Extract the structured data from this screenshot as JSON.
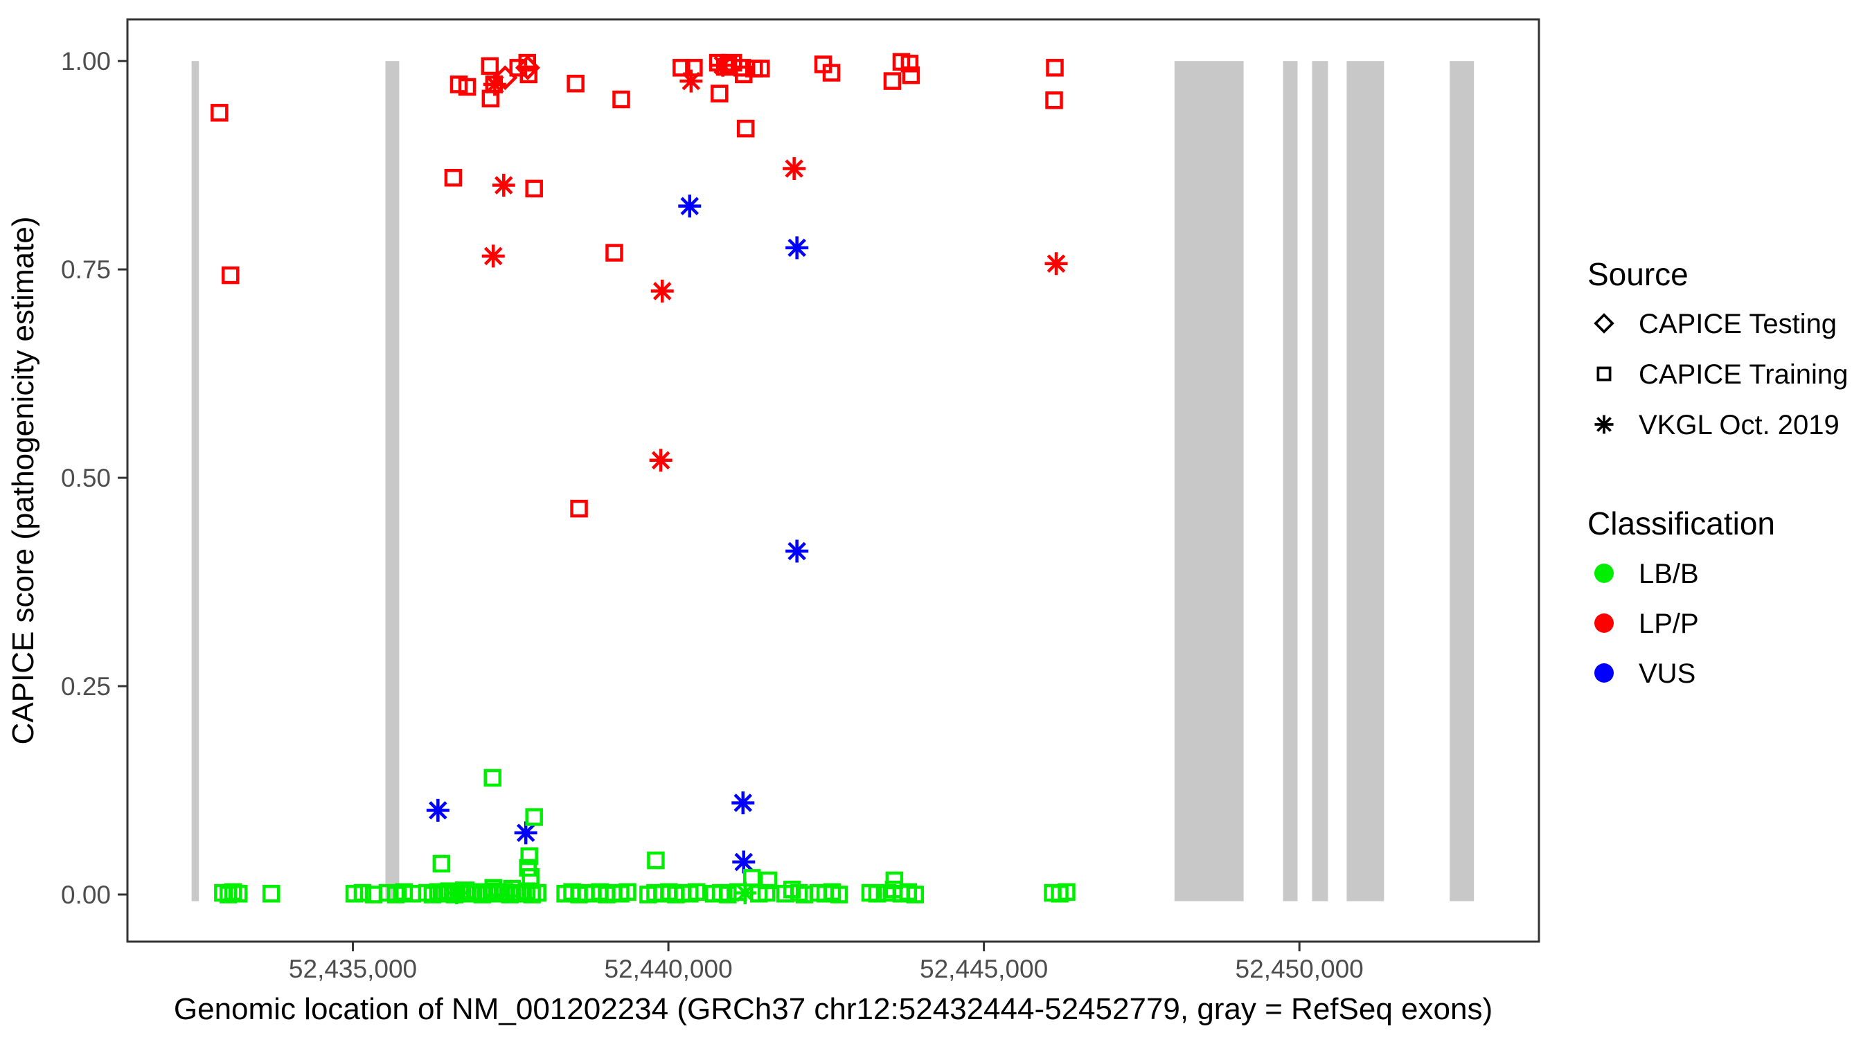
{
  "chart_data": {
    "type": "scatter",
    "title": "",
    "xlabel": "Genomic location of NM_001202234 (GRCh37 chr12:52432444-52452779, gray = RefSeq exons)",
    "ylabel": "CAPICE score (pathogenicity estimate)",
    "x_domain": [
      52431427,
      52453796
    ],
    "y_domain": [
      -0.0565,
      1.05
    ],
    "grid": "off",
    "x_ticks": [
      {
        "v": 52435000,
        "label": "52,435,000"
      },
      {
        "v": 52440000,
        "label": "52,440,000"
      },
      {
        "v": 52445000,
        "label": "52,445,000"
      },
      {
        "v": 52450000,
        "label": "52,450,000"
      }
    ],
    "y_ticks": [
      {
        "v": 0.0,
        "label": "0.00"
      },
      {
        "v": 0.25,
        "label": "0.25"
      },
      {
        "v": 0.5,
        "label": "0.50"
      },
      {
        "v": 0.75,
        "label": "0.75"
      },
      {
        "v": 1.0,
        "label": "1.00"
      }
    ],
    "colors": {
      "LB": "#00EE00",
      "LP": "#FF0000",
      "VUS": "#0000FF",
      "exon": "#C8C8C8",
      "tick_text": "#4D4D4D",
      "axis": "#333333"
    },
    "exons_note": "gray = RefSeq exons",
    "exons": [
      [
        52432444,
        52432560
      ],
      [
        52435515,
        52435734
      ],
      [
        52448020,
        52449116
      ],
      [
        52449741,
        52449971
      ],
      [
        52450201,
        52450453
      ],
      [
        52450749,
        52451341
      ],
      [
        52452382,
        52452766
      ]
    ],
    "legend": {
      "source": {
        "title": "Source",
        "items": [
          {
            "label": "CAPICE Testing",
            "marker": "di"
          },
          {
            "label": "CAPICE Training",
            "marker": "sq"
          },
          {
            "label": "VKGL Oct. 2019",
            "marker": "as"
          }
        ]
      },
      "classification": {
        "title": "Classification",
        "items": [
          {
            "label": "LB/B",
            "color": "#00EE00"
          },
          {
            "label": "LP/P",
            "color": "#FF0000"
          },
          {
            "label": "VUS",
            "color": "#0000FF"
          }
        ]
      }
    },
    "points": [
      [
        52432885,
        0.938,
        "sq",
        "LP"
      ],
      [
        52433060,
        0.743,
        "sq",
        "LP"
      ],
      [
        52436590,
        0.86,
        "sq",
        "LP"
      ],
      [
        52436679,
        0.972,
        "sq",
        "LP"
      ],
      [
        52436811,
        0.969,
        "sq",
        "LP"
      ],
      [
        52437171,
        0.994,
        "sq",
        "LP"
      ],
      [
        52437237,
        0.972,
        "sq",
        "LP"
      ],
      [
        52437182,
        0.955,
        "sq",
        "LP"
      ],
      [
        52437620,
        0.992,
        "sq",
        "LP"
      ],
      [
        52437763,
        0.998,
        "sq",
        "LP"
      ],
      [
        52437785,
        0.984,
        "sq",
        "LP"
      ],
      [
        52437872,
        0.847,
        "sq",
        "LP"
      ],
      [
        52438530,
        0.973,
        "sq",
        "LP"
      ],
      [
        52439253,
        0.954,
        "sq",
        "LP"
      ],
      [
        52438584,
        0.463,
        "sq",
        "LP"
      ],
      [
        52439143,
        0.77,
        "sq",
        "LP"
      ],
      [
        52440206,
        0.992,
        "sq",
        "LP"
      ],
      [
        52440404,
        0.992,
        "sq",
        "LP"
      ],
      [
        52440785,
        0.998,
        "sq",
        "LP"
      ],
      [
        52440896,
        0.993,
        "sq",
        "LP"
      ],
      [
        52440950,
        0.996,
        "sq",
        "LP"
      ],
      [
        52441028,
        0.998,
        "sq",
        "LP"
      ],
      [
        52440809,
        0.961,
        "sq",
        "LP"
      ],
      [
        52441171,
        0.992,
        "sq",
        "LP"
      ],
      [
        52441193,
        0.984,
        "sq",
        "LP"
      ],
      [
        52441357,
        0.991,
        "sq",
        "LP"
      ],
      [
        52441467,
        0.991,
        "sq",
        "LP"
      ],
      [
        52441225,
        0.919,
        "sq",
        "LP"
      ],
      [
        52442453,
        0.996,
        "sq",
        "LP"
      ],
      [
        52442584,
        0.986,
        "sq",
        "LP"
      ],
      [
        52443549,
        0.976,
        "sq",
        "LP"
      ],
      [
        52443692,
        0.999,
        "sq",
        "LP"
      ],
      [
        52443823,
        0.997,
        "sq",
        "LP"
      ],
      [
        52443845,
        0.983,
        "sq",
        "LP"
      ],
      [
        52446124,
        0.992,
        "sq",
        "LP"
      ],
      [
        52446113,
        0.953,
        "sq",
        "LP"
      ],
      [
        52437412,
        0.98,
        "di",
        "LP"
      ],
      [
        52437770,
        0.992,
        "di",
        "LP"
      ],
      [
        52437248,
        0.972,
        "as",
        "LP"
      ],
      [
        52440360,
        0.976,
        "as",
        "LP"
      ],
      [
        52440863,
        0.995,
        "as",
        "LP"
      ],
      [
        52437390,
        0.851,
        "as",
        "LP"
      ],
      [
        52437225,
        0.766,
        "as",
        "LP"
      ],
      [
        52439903,
        0.724,
        "as",
        "LP"
      ],
      [
        52439880,
        0.521,
        "as",
        "LP"
      ],
      [
        52441993,
        0.871,
        "as",
        "LP"
      ],
      [
        52446146,
        0.757,
        "as",
        "LP"
      ],
      [
        52440337,
        0.826,
        "as",
        "VUS"
      ],
      [
        52442037,
        0.776,
        "as",
        "VUS"
      ],
      [
        52442037,
        0.412,
        "as",
        "VUS"
      ],
      [
        52436348,
        0.101,
        "as",
        "VUS"
      ],
      [
        52437740,
        0.074,
        "as",
        "VUS"
      ],
      [
        52441182,
        0.11,
        "as",
        "VUS"
      ],
      [
        52441193,
        0.039,
        "as",
        "VUS"
      ],
      [
        52437214,
        0.14,
        "sq",
        "LB"
      ],
      [
        52437872,
        0.093,
        "sq",
        "LB"
      ],
      [
        52436403,
        0.037,
        "sq",
        "LB"
      ],
      [
        52437795,
        0.046,
        "sq",
        "LB"
      ],
      [
        52437773,
        0.032,
        "sq",
        "LB"
      ],
      [
        52437817,
        0.021,
        "sq",
        "LB"
      ],
      [
        52439801,
        0.041,
        "sq",
        "LB"
      ],
      [
        52441324,
        0.02,
        "sq",
        "LB"
      ],
      [
        52441587,
        0.017,
        "sq",
        "LB"
      ],
      [
        52443581,
        0.017,
        "sq",
        "LB"
      ],
      [
        52437225,
        0.008,
        "sq",
        "LB"
      ],
      [
        52437521,
        0.007,
        "sq",
        "LB"
      ],
      [
        52441215,
        0.002,
        "as",
        "LB"
      ],
      [
        52436644,
        0.002,
        "as",
        "LB"
      ],
      [
        52432940,
        0.002,
        "sq",
        "LB"
      ],
      [
        52433027,
        0.0,
        "sq",
        "LB"
      ],
      [
        52433104,
        0.003,
        "sq",
        "LB"
      ],
      [
        52433191,
        0.001,
        "sq",
        "LB"
      ],
      [
        52433707,
        0.001,
        "sq",
        "LB"
      ],
      [
        52435022,
        0.001,
        "sq",
        "LB"
      ],
      [
        52435153,
        0.002,
        "sq",
        "LB"
      ],
      [
        52435329,
        0.0,
        "sq",
        "LB"
      ],
      [
        52435548,
        0.002,
        "sq",
        "LB"
      ],
      [
        52435680,
        0.0,
        "sq",
        "LB"
      ],
      [
        52435811,
        0.003,
        "sq",
        "LB"
      ],
      [
        52435942,
        0.001,
        "sq",
        "LB"
      ],
      [
        52436173,
        0.002,
        "sq",
        "LB"
      ],
      [
        52436261,
        0.0,
        "sq",
        "LB"
      ],
      [
        52436348,
        0.003,
        "sq",
        "LB"
      ],
      [
        52436436,
        0.001,
        "sq",
        "LB"
      ],
      [
        52436524,
        0.004,
        "sq",
        "LB"
      ],
      [
        52436611,
        0.0,
        "sq",
        "LB"
      ],
      [
        52436699,
        0.002,
        "sq",
        "LB"
      ],
      [
        52436787,
        0.005,
        "sq",
        "LB"
      ],
      [
        52436874,
        0.001,
        "sq",
        "LB"
      ],
      [
        52436962,
        0.003,
        "sq",
        "LB"
      ],
      [
        52437050,
        0.0,
        "sq",
        "LB"
      ],
      [
        52437137,
        0.002,
        "sq",
        "LB"
      ],
      [
        52437225,
        0.004,
        "sq",
        "LB"
      ],
      [
        52437313,
        0.001,
        "sq",
        "LB"
      ],
      [
        52437400,
        0.003,
        "sq",
        "LB"
      ],
      [
        52437488,
        0.0,
        "sq",
        "LB"
      ],
      [
        52437576,
        0.002,
        "sq",
        "LB"
      ],
      [
        52437663,
        0.001,
        "sq",
        "LB"
      ],
      [
        52437751,
        0.004,
        "sq",
        "LB"
      ],
      [
        52437839,
        0.0,
        "sq",
        "LB"
      ],
      [
        52437926,
        0.002,
        "sq",
        "LB"
      ],
      [
        52438365,
        0.001,
        "sq",
        "LB"
      ],
      [
        52438474,
        0.003,
        "sq",
        "LB"
      ],
      [
        52438584,
        0.0,
        "sq",
        "LB"
      ],
      [
        52438694,
        0.002,
        "sq",
        "LB"
      ],
      [
        52438803,
        0.001,
        "sq",
        "LB"
      ],
      [
        52438913,
        0.003,
        "sq",
        "LB"
      ],
      [
        52439022,
        0.0,
        "sq",
        "LB"
      ],
      [
        52439132,
        0.002,
        "sq",
        "LB"
      ],
      [
        52439242,
        0.001,
        "sq",
        "LB"
      ],
      [
        52439351,
        0.003,
        "sq",
        "LB"
      ],
      [
        52439680,
        0.0,
        "sq",
        "LB"
      ],
      [
        52439790,
        0.002,
        "sq",
        "LB"
      ],
      [
        52439899,
        0.001,
        "sq",
        "LB"
      ],
      [
        52440009,
        0.003,
        "sq",
        "LB"
      ],
      [
        52440119,
        0.0,
        "sq",
        "LB"
      ],
      [
        52440228,
        0.002,
        "sq",
        "LB"
      ],
      [
        52440338,
        0.001,
        "sq",
        "LB"
      ],
      [
        52440447,
        0.003,
        "sq",
        "LB"
      ],
      [
        52440721,
        0.001,
        "sq",
        "LB"
      ],
      [
        52440831,
        0.002,
        "sq",
        "LB"
      ],
      [
        52440941,
        0.0,
        "sq",
        "LB"
      ],
      [
        52441105,
        0.003,
        "sq",
        "LB"
      ],
      [
        52441434,
        0.001,
        "sq",
        "LB"
      ],
      [
        52441554,
        0.002,
        "sq",
        "LB"
      ],
      [
        52441850,
        0.001,
        "sq",
        "LB"
      ],
      [
        52441960,
        0.006,
        "sq",
        "LB"
      ],
      [
        52442069,
        0.002,
        "sq",
        "LB"
      ],
      [
        52442157,
        0.0,
        "sq",
        "LB"
      ],
      [
        52442376,
        0.002,
        "sq",
        "LB"
      ],
      [
        52442486,
        0.001,
        "sq",
        "LB"
      ],
      [
        52442595,
        0.003,
        "sq",
        "LB"
      ],
      [
        52442705,
        0.0,
        "sq",
        "LB"
      ],
      [
        52443198,
        0.002,
        "sq",
        "LB"
      ],
      [
        52443307,
        0.001,
        "sq",
        "LB"
      ],
      [
        52443472,
        0.002,
        "sq",
        "LB"
      ],
      [
        52443570,
        0.006,
        "sq",
        "LB"
      ],
      [
        52443691,
        0.001,
        "sq",
        "LB"
      ],
      [
        52443800,
        0.003,
        "sq",
        "LB"
      ],
      [
        52443910,
        0.0,
        "sq",
        "LB"
      ],
      [
        52446091,
        0.002,
        "sq",
        "LB"
      ],
      [
        52446201,
        0.001,
        "sq",
        "LB"
      ],
      [
        52446310,
        0.003,
        "sq",
        "LB"
      ]
    ]
  }
}
